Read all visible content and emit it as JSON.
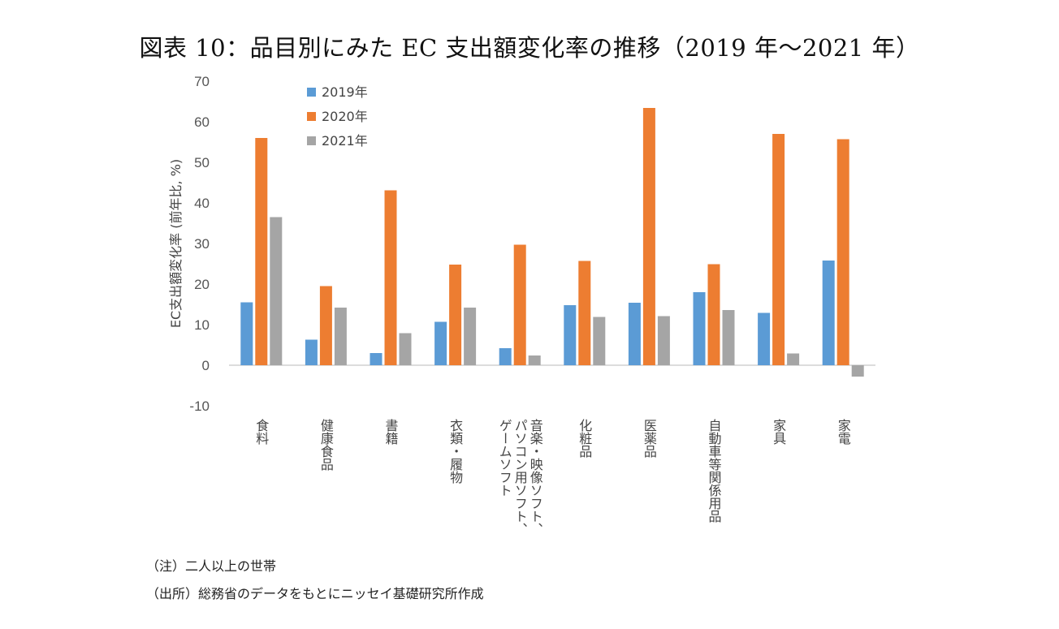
{
  "chart_data": {
    "type": "bar",
    "title": "図表 10：品目別にみた EC 支出額変化率の推移（2019 年～2021 年）",
    "ylabel": "EC支出額変化率 (前年比, %)",
    "xlabel": "",
    "ylim": [
      -10,
      70
    ],
    "yticks": [
      -10,
      0,
      10,
      20,
      30,
      40,
      50,
      60,
      70
    ],
    "legend_position": "top-left",
    "categories": [
      [
        "食料"
      ],
      [
        "健康食品"
      ],
      [
        "書籍"
      ],
      [
        "衣類・履物"
      ],
      [
        "音楽・映像ソフト、",
        "パソコン用ソフト、",
        "ゲームソフト"
      ],
      [
        "化粧品"
      ],
      [
        "医薬品"
      ],
      [
        "自動車等関係用品"
      ],
      [
        "家具"
      ],
      [
        "家電"
      ]
    ],
    "series": [
      {
        "name": "2019年",
        "color": "#5B9BD5",
        "values": [
          15.5,
          6.3,
          3.0,
          10.7,
          4.2,
          14.8,
          15.4,
          18.0,
          12.9,
          25.8
        ]
      },
      {
        "name": "2020年",
        "color": "#ED7D31",
        "values": [
          56.0,
          19.5,
          43.1,
          24.8,
          29.7,
          25.7,
          63.4,
          24.9,
          57.0,
          55.7
        ]
      },
      {
        "name": "2021年",
        "color": "#A5A5A5",
        "values": [
          36.5,
          14.2,
          7.9,
          14.2,
          2.4,
          11.9,
          12.1,
          13.6,
          2.9,
          -2.8
        ]
      }
    ]
  },
  "notes": {
    "note_1": "（注）二人以上の世帯",
    "note_2": "（出所）総務省のデータをもとにニッセイ基礎研究所作成"
  }
}
